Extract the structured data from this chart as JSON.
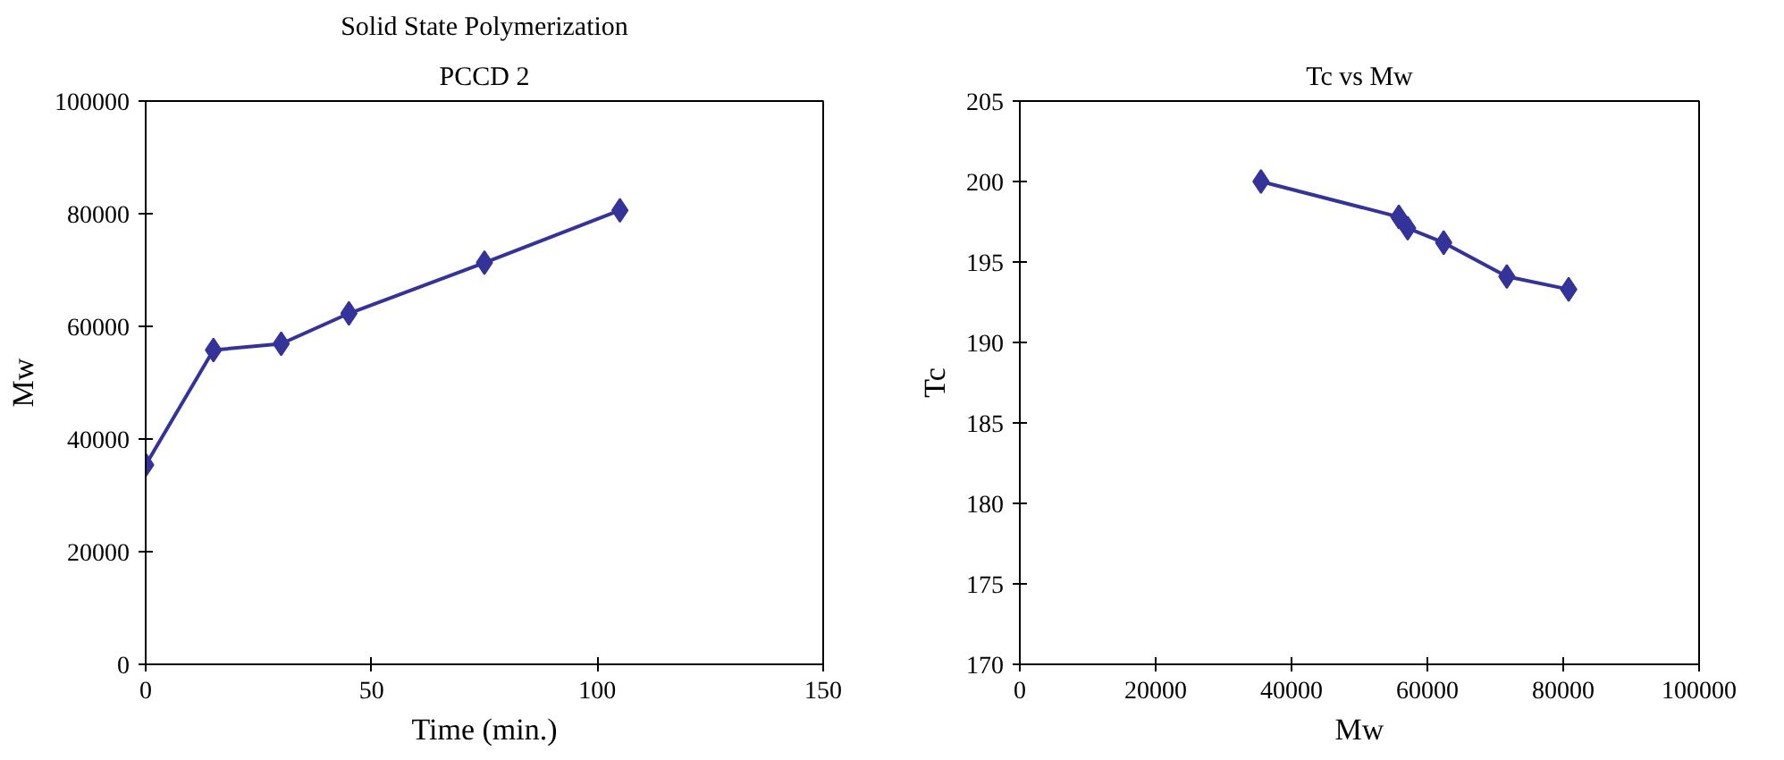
{
  "chart_data": [
    {
      "type": "line",
      "title": "Solid State Polymerization",
      "subtitle": "PCCD 2",
      "xlabel": "Time (min.)",
      "ylabel": "Mw",
      "x": [
        0,
        15,
        30,
        45,
        75,
        105
      ],
      "series": [
        {
          "color": "#333399",
          "values": [
            35400,
            55800,
            56900,
            62300,
            71300,
            80600
          ]
        }
      ],
      "xlim": [
        0,
        150
      ],
      "xticks": [
        0,
        50,
        100,
        150
      ],
      "ylim": [
        0,
        100000
      ],
      "yticks": [
        0,
        20000,
        40000,
        60000,
        80000,
        100000
      ],
      "marker": "diamond",
      "line_style": "solid",
      "grid": false
    },
    {
      "type": "line",
      "title": "Tc vs Mw",
      "xlabel": "Mw",
      "ylabel": "Tc",
      "x": [
        35500,
        55800,
        57100,
        62400,
        71700,
        80800
      ],
      "series": [
        {
          "color": "#333399",
          "values": [
            200,
            197.8,
            197.1,
            196.2,
            194.1,
            193.3
          ]
        }
      ],
      "xlim": [
        0,
        100000
      ],
      "xticks": [
        0,
        20000,
        40000,
        60000,
        80000,
        100000
      ],
      "ylim": [
        170,
        205
      ],
      "yticks": [
        170,
        175,
        180,
        185,
        190,
        195,
        200,
        205
      ],
      "marker": "diamond",
      "line_style": "solid",
      "grid": false
    }
  ]
}
